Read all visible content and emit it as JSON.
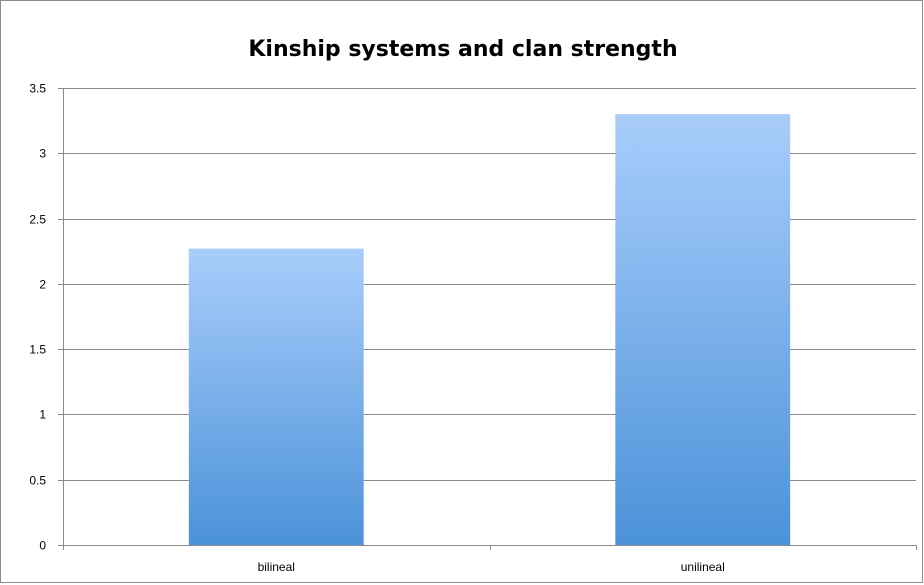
{
  "chart_data": {
    "type": "bar",
    "title": "Kinship systems and clan strength",
    "categories": [
      "bilineal",
      "unilineal"
    ],
    "values": [
      2.27,
      3.3
    ],
    "ylim": [
      0,
      3.5
    ],
    "yticks": [
      "0",
      "0.5",
      "1",
      "1.5",
      "2",
      "2.5",
      "3",
      "3.5"
    ],
    "grid": true,
    "legend": "none",
    "bar_color_top": "#a9cdfb",
    "bar_color_bottom": "#4b92d9"
  }
}
